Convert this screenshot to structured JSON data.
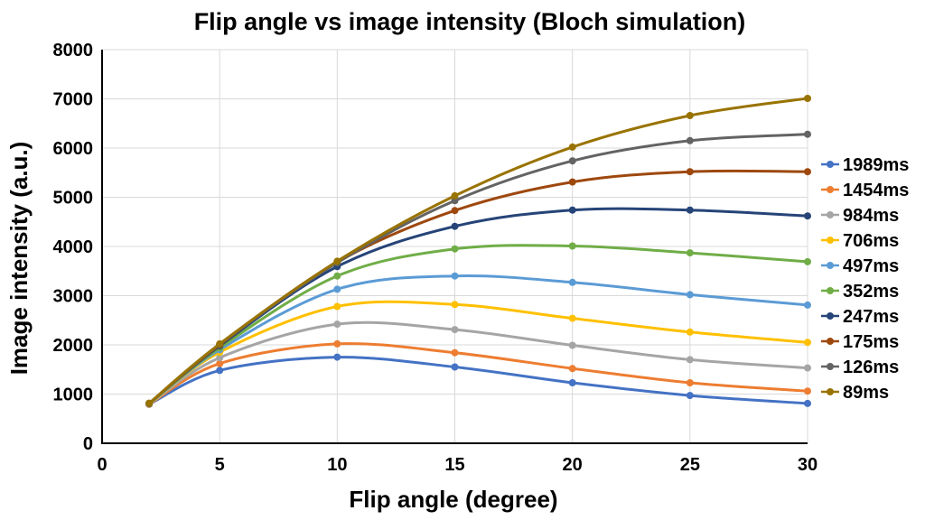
{
  "window": {
    "background": "#FFFFFF"
  },
  "chart_data": {
    "type": "line",
    "title": "Flip angle vs image intensity (Bloch simulation)",
    "xlabel": "Flip angle (degree)",
    "ylabel": "Image intensity (a.u.)",
    "x": [
      2,
      5,
      10,
      15,
      20,
      25,
      30
    ],
    "xlim": [
      0,
      30
    ],
    "ylim": [
      0,
      8000
    ],
    "x_ticks": [
      0,
      5,
      10,
      15,
      20,
      25,
      30
    ],
    "y_ticks": [
      0,
      1000,
      2000,
      3000,
      4000,
      5000,
      6000,
      7000,
      8000
    ],
    "grid": true,
    "legend_position": "right",
    "marker": "circle",
    "colors": {
      "gridline": "#D9D9D9",
      "axis": "#000000",
      "text": "#000000"
    },
    "series": [
      {
        "name": "1989ms",
        "color": "#4472C4",
        "values": [
          790,
          1480,
          1750,
          1550,
          1230,
          970,
          810
        ]
      },
      {
        "name": "1454ms",
        "color": "#ED7D31",
        "values": [
          795,
          1620,
          2020,
          1840,
          1520,
          1230,
          1060
        ]
      },
      {
        "name": "984ms",
        "color": "#A5A5A5",
        "values": [
          800,
          1740,
          2420,
          2310,
          1990,
          1700,
          1530
        ]
      },
      {
        "name": "706ms",
        "color": "#FFC000",
        "values": [
          800,
          1850,
          2780,
          2820,
          2540,
          2260,
          2050
        ]
      },
      {
        "name": "497ms",
        "color": "#5B9BD5",
        "values": [
          805,
          1900,
          3130,
          3400,
          3270,
          3020,
          2810
        ]
      },
      {
        "name": "352ms",
        "color": "#70AD47",
        "values": [
          805,
          1940,
          3400,
          3950,
          4010,
          3870,
          3690
        ]
      },
      {
        "name": "247ms",
        "color": "#264478",
        "values": [
          810,
          1980,
          3590,
          4410,
          4740,
          4740,
          4620
        ]
      },
      {
        "name": "175ms",
        "color": "#9E480E",
        "values": [
          810,
          2000,
          3680,
          4730,
          5310,
          5520,
          5520
        ]
      },
      {
        "name": "126ms",
        "color": "#636363",
        "values": [
          810,
          2010,
          3670,
          4930,
          5740,
          6150,
          6280
        ]
      },
      {
        "name": "89ms",
        "color": "#997300",
        "values": [
          815,
          2020,
          3700,
          5030,
          6020,
          6660,
          7010
        ]
      }
    ]
  }
}
